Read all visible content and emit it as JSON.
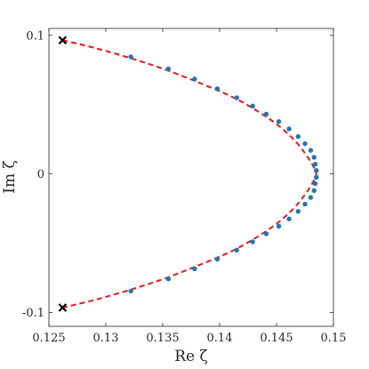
{
  "chart_data": {
    "type": "scatter",
    "xlabel": "Re ζ",
    "ylabel": "Im ζ",
    "xlim": [
      0.125,
      0.15
    ],
    "ylim": [
      -0.11,
      0.105
    ],
    "xticks": [
      0.125,
      0.13,
      0.135,
      0.14,
      0.145,
      0.15
    ],
    "xtick_labels": [
      "0.125",
      "0.13",
      "0.135",
      "0.14",
      "0.145",
      "0.15"
    ],
    "yticks": [
      -0.1,
      0,
      0.1
    ],
    "ytick_labels": [
      "-0.1",
      "0",
      "0.1"
    ],
    "grid": false,
    "legend": "none",
    "series": [
      {
        "style": "dashed-curve",
        "color": "#e8161b",
        "x": [
          0.1262,
          0.129,
          0.132,
          0.135,
          0.138,
          0.141,
          0.143,
          0.145,
          0.1465,
          0.1475,
          0.1481,
          0.1484,
          0.1485,
          0.1484,
          0.1481,
          0.1475,
          0.1465,
          0.145,
          0.143,
          0.141,
          0.138,
          0.135,
          0.132,
          0.129,
          0.1262
        ],
        "y": [
          0.0965,
          0.091,
          0.084,
          0.076,
          0.0665,
          0.056,
          0.047,
          0.036,
          0.025,
          0.015,
          0.0075,
          0.0025,
          0.0,
          -0.0025,
          -0.0075,
          -0.015,
          -0.025,
          -0.036,
          -0.047,
          -0.056,
          -0.0665,
          -0.076,
          -0.084,
          -0.091,
          -0.0965
        ]
      },
      {
        "style": "dots",
        "color": "#1f77b4",
        "x": [
          0.1322,
          0.1355,
          0.1378,
          0.1398,
          0.1415,
          0.1429,
          0.1441,
          0.1452,
          0.1461,
          0.1469,
          0.1475,
          0.148,
          0.1483,
          0.1484,
          0.1485,
          0.1485,
          0.1484,
          0.1483,
          0.148,
          0.1475,
          0.1469,
          0.1461,
          0.1452,
          0.1441,
          0.1429,
          0.1415,
          0.1398,
          0.1378,
          0.1355,
          0.1322
        ],
        "y": [
          0.0845,
          0.0758,
          0.0685,
          0.0615,
          0.055,
          0.049,
          0.0432,
          0.0378,
          0.0325,
          0.027,
          0.0218,
          0.017,
          0.012,
          0.007,
          0.0025,
          -0.0025,
          -0.007,
          -0.012,
          -0.017,
          -0.0218,
          -0.027,
          -0.0325,
          -0.0378,
          -0.0432,
          -0.049,
          -0.055,
          -0.0615,
          -0.0685,
          -0.0758,
          -0.0845
        ]
      },
      {
        "style": "x-markers",
        "color": "#000000",
        "x": [
          0.1262,
          0.1262
        ],
        "y": [
          0.0965,
          -0.0965
        ]
      }
    ]
  }
}
